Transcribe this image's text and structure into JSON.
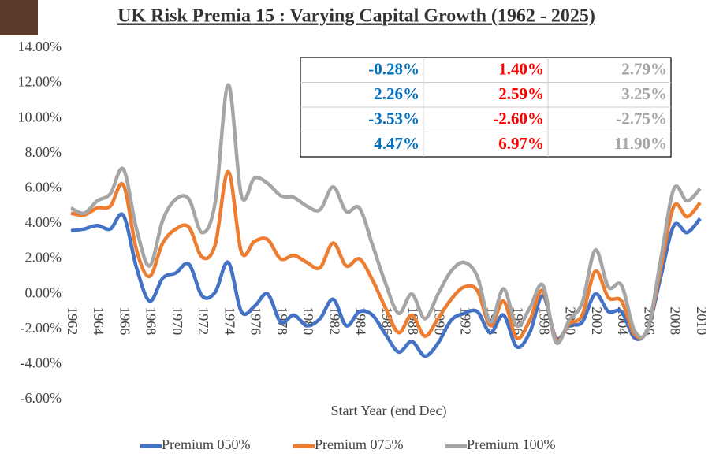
{
  "chart_data": {
    "type": "line",
    "title": "UK Risk Premia 15 : Varying Capital Growth (1962 - 2025)",
    "x_label": "Start Year (end Dec)",
    "categories": [
      "1962",
      null,
      "1964",
      null,
      "1966",
      null,
      "1968",
      null,
      "1970",
      null,
      "1972",
      null,
      "1974",
      null,
      "1976",
      null,
      "1978",
      null,
      "1980",
      null,
      "1982",
      null,
      "1984",
      null,
      "1986",
      null,
      "1988",
      null,
      "1990",
      null,
      "1992",
      null,
      "1994",
      null,
      "1996",
      null,
      "1998",
      null,
      "2000",
      null,
      "2002",
      null,
      "2004",
      null,
      "2006",
      null,
      "2008",
      null,
      "2010"
    ],
    "ylim": [
      -6,
      14
    ],
    "yticks": [
      {
        "value": 14,
        "label": "14.00%"
      },
      {
        "value": 12,
        "label": "12.00%"
      },
      {
        "value": 10,
        "label": "10.00%"
      },
      {
        "value": 8,
        "label": "8.00%"
      },
      {
        "value": 6,
        "label": "6.00%"
      },
      {
        "value": 4,
        "label": "4.00%"
      },
      {
        "value": 2,
        "label": "2.00%"
      },
      {
        "value": 0,
        "label": "0.00%"
      },
      {
        "value": -2,
        "label": "-2.00%"
      },
      {
        "value": -4,
        "label": "-4.00%"
      },
      {
        "value": -6,
        "label": "-6.00%"
      }
    ],
    "legend": "bottom",
    "series": [
      {
        "name": "Premium 050%",
        "color": "#4472c4",
        "values": [
          3.6,
          3.7,
          3.9,
          3.7,
          4.47,
          1.5,
          -0.4,
          0.9,
          1.2,
          1.7,
          -0.1,
          0.1,
          1.8,
          -1.0,
          -0.7,
          0.0,
          -1.6,
          -1.2,
          -1.8,
          -1.4,
          -0.3,
          -1.8,
          -1.0,
          -1.2,
          -2.3,
          -3.3,
          -2.7,
          -3.53,
          -2.8,
          -1.5,
          -1.1,
          -1.0,
          -2.2,
          -1.2,
          -3.0,
          -2.2,
          -0.1,
          -2.5,
          -1.8,
          -1.6,
          0.0,
          -1.0,
          -1.0,
          -2.5,
          -2.0,
          1.0,
          3.9,
          3.5,
          4.3
        ]
      },
      {
        "name": "Premium 075%",
        "color": "#ed7d31",
        "values": [
          4.6,
          4.5,
          4.9,
          5.0,
          6.2,
          2.5,
          1.0,
          2.9,
          3.7,
          3.8,
          2.1,
          2.8,
          6.97,
          2.4,
          3.0,
          3.1,
          2.0,
          2.2,
          1.8,
          1.5,
          2.9,
          1.6,
          2.0,
          0.8,
          -0.8,
          -2.2,
          -1.2,
          -2.4,
          -1.4,
          -0.3,
          0.4,
          0.2,
          -1.8,
          -0.4,
          -2.5,
          -1.5,
          0.2,
          -2.6,
          -1.7,
          -1.2,
          1.3,
          -0.2,
          -0.4,
          -2.3,
          -2.0,
          1.5,
          5.0,
          4.4,
          5.2
        ]
      },
      {
        "name": "Premium 100%",
        "color": "#a5a5a5",
        "values": [
          4.9,
          4.6,
          5.3,
          5.7,
          7.1,
          3.7,
          1.6,
          4.2,
          5.4,
          5.4,
          3.5,
          5.2,
          11.9,
          5.6,
          6.6,
          6.3,
          5.6,
          5.5,
          5.0,
          4.8,
          6.1,
          4.7,
          4.9,
          2.8,
          0.6,
          -1.1,
          0.0,
          -1.4,
          0.0,
          1.3,
          1.8,
          1.0,
          -1.6,
          0.3,
          -1.8,
          -0.8,
          0.5,
          -2.75,
          -1.5,
          -0.5,
          2.5,
          0.4,
          0.5,
          -2.1,
          -2.0,
          2.0,
          6.0,
          5.3,
          6.0
        ]
      }
    ],
    "table": {
      "colors": [
        "#0070c0",
        "#ff0000",
        "#a5a5a5"
      ],
      "rows": [
        [
          "-0.28%",
          "1.40%",
          "2.79%"
        ],
        [
          "2.26%",
          "2.59%",
          "3.25%"
        ],
        [
          "-3.53%",
          "-2.60%",
          "-2.75%"
        ],
        [
          "4.47%",
          "6.97%",
          "11.90%"
        ]
      ]
    }
  }
}
